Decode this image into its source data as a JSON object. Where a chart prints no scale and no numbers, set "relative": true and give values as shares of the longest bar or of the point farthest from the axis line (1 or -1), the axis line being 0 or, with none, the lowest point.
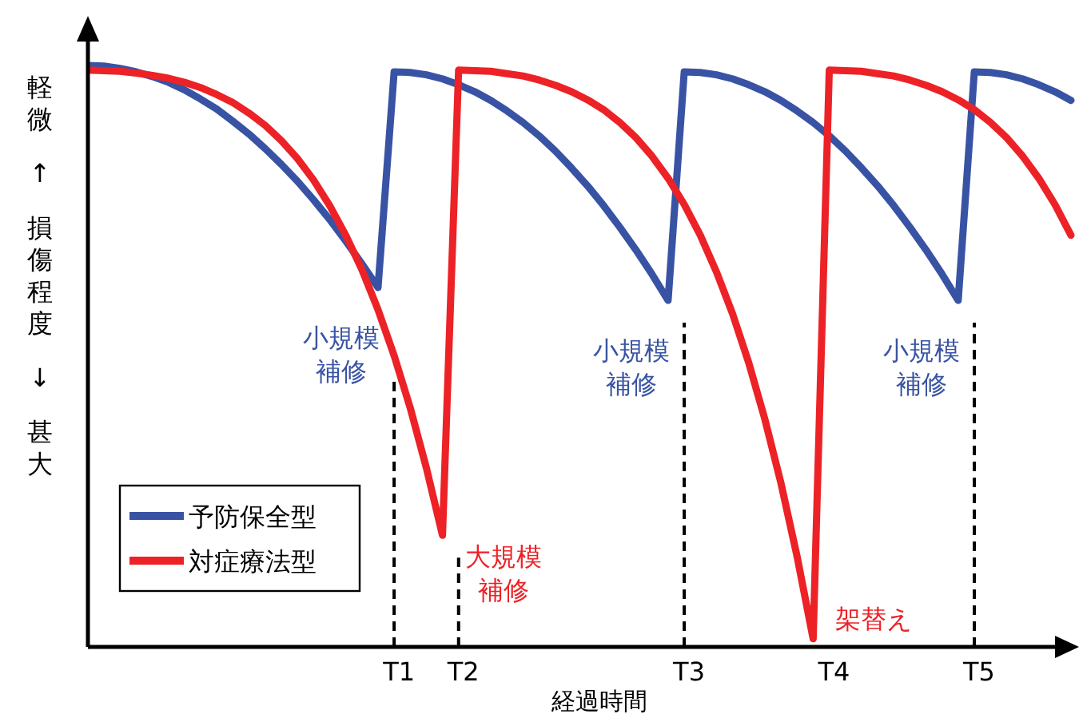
{
  "chart_data": {
    "type": "line",
    "relative": true,
    "ylabel": "軽微 ↑ 損傷程度 ↓ 甚大",
    "xlabel": "経過時間",
    "categories": [
      null,
      null,
      null,
      null,
      null,
      null,
      null,
      null,
      null,
      null,
      null,
      null,
      null,
      null,
      null,
      null,
      null,
      null,
      null,
      "T1",
      null,
      null,
      null,
      "T2",
      null,
      null,
      null,
      null,
      null,
      null,
      null,
      null,
      null,
      null,
      null,
      null,
      null,
      "T3",
      null,
      null,
      null,
      null,
      null,
      null,
      null,
      null,
      "T4",
      null,
      null,
      null,
      null,
      null,
      null,
      null,
      null,
      "T5",
      null,
      null,
      null,
      null,
      null,
      null
    ],
    "legend": "bottom left",
    "grid": false,
    "marker": "none",
    "line_style": "solid",
    "series": [
      {
        "name": "予防保全型",
        "color": "#3953a4",
        "values": [
          1.0,
          0.999,
          0.995,
          0.989,
          0.981,
          0.971,
          0.958,
          0.942,
          0.925,
          0.904,
          0.882,
          0.857,
          0.83,
          0.801,
          0.769,
          0.735,
          0.698,
          0.659,
          0.618,
          0.989,
          0.988,
          0.984,
          0.977,
          0.967,
          0.955,
          0.94,
          0.922,
          0.902,
          0.879,
          0.853,
          0.824,
          0.793,
          0.759,
          0.722,
          0.683,
          0.641,
          0.596,
          0.989,
          0.988,
          0.984,
          0.977,
          0.967,
          0.955,
          0.94,
          0.922,
          0.902,
          0.879,
          0.853,
          0.824,
          0.793,
          0.759,
          0.722,
          0.683,
          0.641,
          0.596,
          0.989,
          0.988,
          0.984,
          0.977,
          0.967,
          0.955,
          0.94
        ]
      },
      {
        "name": "対症療法型",
        "color": "#ec2227",
        "values": [
          0.992,
          0.991,
          0.99,
          0.987,
          0.983,
          0.978,
          0.971,
          0.962,
          0.95,
          0.936,
          0.918,
          0.897,
          0.871,
          0.84,
          0.803,
          0.759,
          0.708,
          0.649,
          0.58,
          0.501,
          0.411,
          0.308,
          0.192,
          0.992,
          0.991,
          0.99,
          0.986,
          0.982,
          0.975,
          0.966,
          0.955,
          0.941,
          0.924,
          0.902,
          0.876,
          0.844,
          0.806,
          0.761,
          0.708,
          0.645,
          0.573,
          0.489,
          0.392,
          0.282,
          0.156,
          0.014,
          0.992,
          0.991,
          0.99,
          0.986,
          0.982,
          0.975,
          0.966,
          0.955,
          0.941,
          0.924,
          0.902,
          0.876,
          0.844,
          0.806,
          0.761,
          0.708
        ]
      }
    ],
    "ref_lines": [
      {
        "axis": "x",
        "value": "T1",
        "label": null,
        "line_style": "dashed"
      },
      {
        "axis": "x",
        "value": "T2",
        "label": null,
        "line_style": "dashed"
      },
      {
        "axis": "x",
        "value": "T3",
        "label": null,
        "line_style": "dashed"
      },
      {
        "axis": "x",
        "value": "T5",
        "label": null,
        "line_style": "dashed"
      }
    ],
    "annotations": [
      "小規模補修",
      "大規模補修",
      "小規模補修",
      "架替え",
      "小規模補修"
    ]
  }
}
